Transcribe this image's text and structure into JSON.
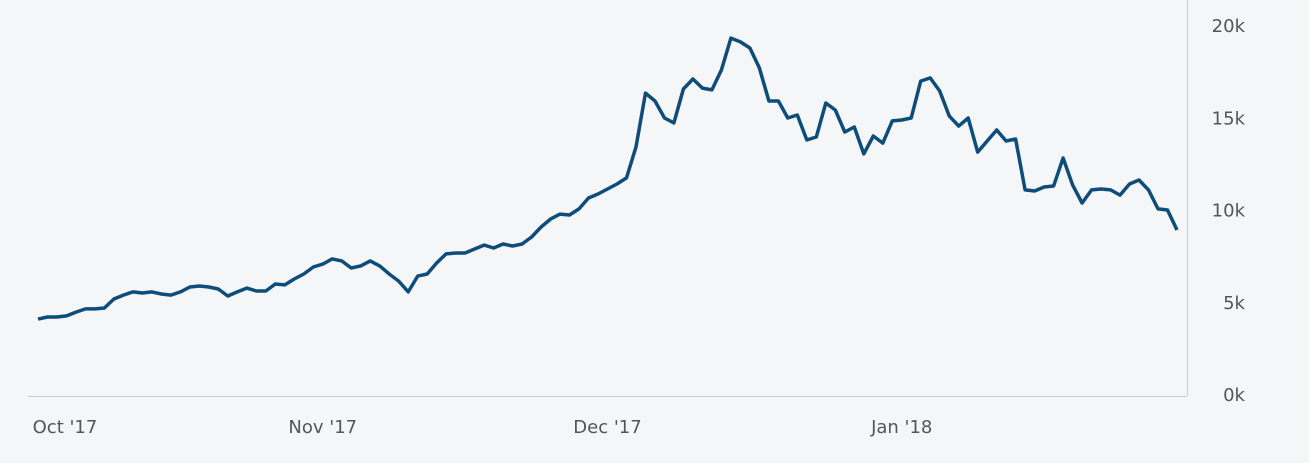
{
  "chart_data": {
    "type": "line",
    "categories": [
      "Oct '17",
      null,
      null,
      null,
      null,
      null,
      null,
      null,
      null,
      null,
      null,
      null,
      null,
      null,
      null,
      null,
      null,
      null,
      null,
      null,
      null,
      null,
      null,
      null,
      null,
      null,
      null,
      null,
      null,
      null,
      "Nov '17",
      null,
      null,
      null,
      null,
      null,
      null,
      null,
      null,
      null,
      null,
      null,
      null,
      null,
      null,
      null,
      null,
      null,
      null,
      null,
      null,
      null,
      null,
      null,
      null,
      null,
      null,
      null,
      null,
      null,
      "Dec '17",
      null,
      null,
      null,
      null,
      null,
      null,
      null,
      null,
      null,
      null,
      null,
      null,
      null,
      null,
      null,
      null,
      null,
      null,
      null,
      null,
      null,
      null,
      null,
      null,
      null,
      null,
      null,
      null,
      null,
      null,
      "Jan '18",
      null,
      null,
      null,
      null,
      null,
      null,
      null,
      null,
      null,
      null,
      null,
      null,
      null,
      null,
      null,
      null,
      null,
      null,
      null,
      null,
      null,
      null,
      null,
      null,
      null,
      null,
      null,
      null,
      null
    ],
    "series": [
      {
        "color": "#0e4c7a",
        "values": [
          4.17,
          4.28,
          4.28,
          4.34,
          4.55,
          4.72,
          4.72,
          4.77,
          5.26,
          5.47,
          5.64,
          5.58,
          5.64,
          5.53,
          5.47,
          5.64,
          5.91,
          5.96,
          5.91,
          5.8,
          5.42,
          5.64,
          5.85,
          5.69,
          5.69,
          6.07,
          6.02,
          6.34,
          6.61,
          6.99,
          7.15,
          7.43,
          7.32,
          6.94,
          7.05,
          7.32,
          7.05,
          6.61,
          6.23,
          5.64,
          6.5,
          6.61,
          7.21,
          7.7,
          7.75,
          7.75,
          7.97,
          8.18,
          8.02,
          8.24,
          8.13,
          8.24,
          8.62,
          9.16,
          9.59,
          9.86,
          9.81,
          10.14,
          10.73,
          10.95,
          11.22,
          11.49,
          11.82,
          13.5,
          16.42,
          15.99,
          15.07,
          14.8,
          16.64,
          17.18,
          16.69,
          16.59,
          17.67,
          19.4,
          19.19,
          18.86,
          17.78,
          15.99,
          15.99,
          15.07,
          15.23,
          13.88,
          14.04,
          15.88,
          15.5,
          14.31,
          14.58,
          13.12,
          14.09,
          13.71,
          14.91,
          14.96,
          15.07,
          17.07,
          17.24,
          16.53,
          15.18,
          14.63,
          15.07,
          13.22,
          13.82,
          14.42,
          13.82,
          13.93,
          11.17,
          11.11,
          11.33,
          11.38,
          12.9,
          11.44,
          10.46,
          11.17,
          11.22,
          11.17,
          10.89,
          11.49,
          11.71,
          11.17,
          10.14,
          10.08,
          9.0
        ]
      }
    ],
    "ylim": [
      0,
      21
    ],
    "yticks": [
      {
        "value": 0,
        "label": "0k"
      },
      {
        "value": 5,
        "label": "5k"
      },
      {
        "value": 10,
        "label": "10k"
      },
      {
        "value": 15,
        "label": "15k"
      },
      {
        "value": 20,
        "label": "20k"
      }
    ]
  }
}
